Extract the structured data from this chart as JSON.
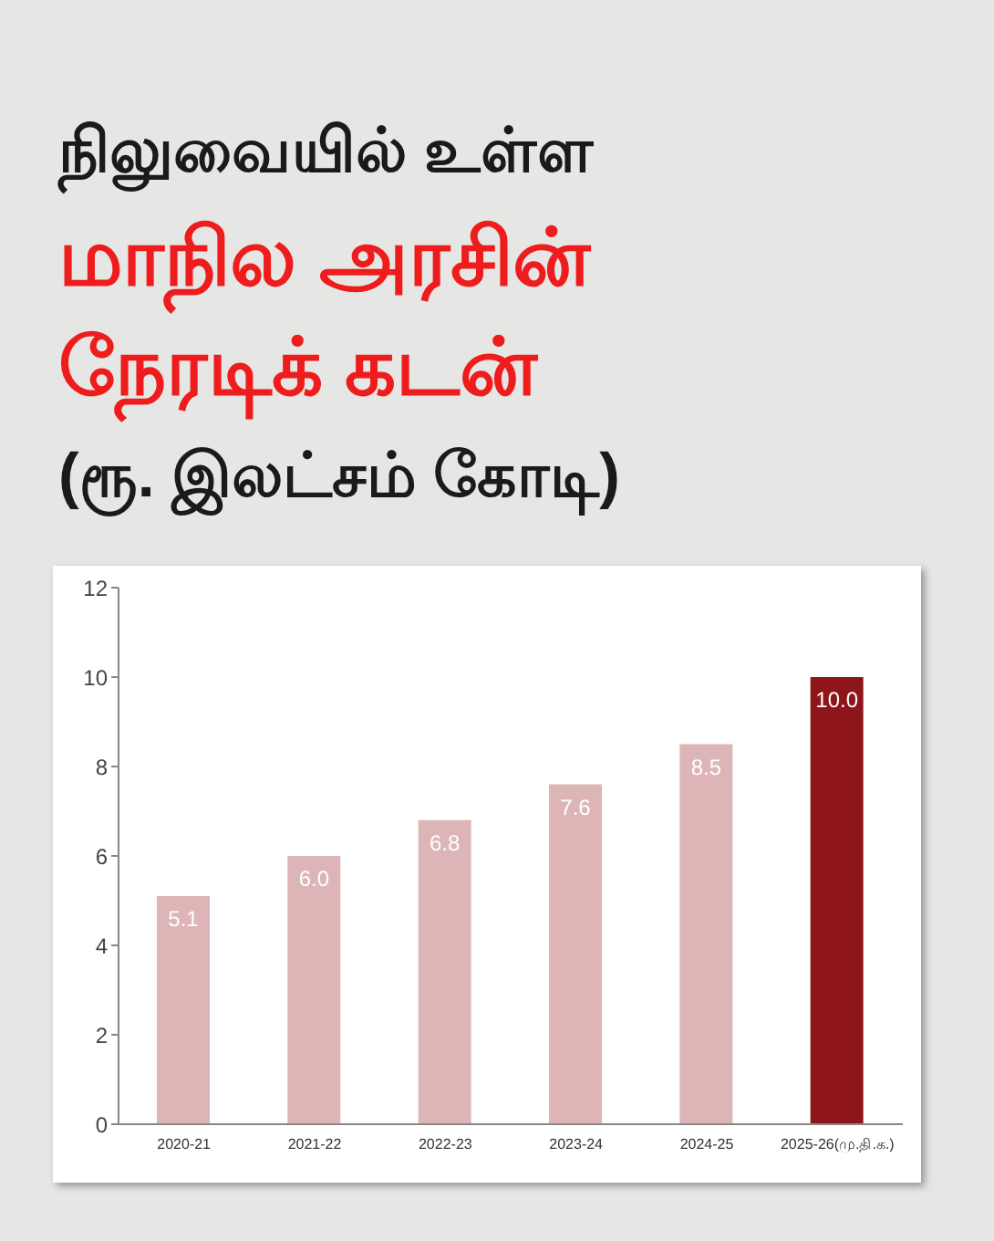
{
  "chart_data": {
    "type": "bar",
    "title": "நிலுவையில் உள்ள\nமாநில அரசின்\nநேரடிக் கடன்",
    "subtitle": "(ரூ. இலட்சம் கோடி)",
    "categories": [
      "2020-21",
      "2021-22",
      "2022-23",
      "2023-24",
      "2024-25",
      "2025-26(மு.தி.க.)"
    ],
    "values": [
      5.1,
      6.0,
      6.8,
      7.6,
      8.5,
      10.0
    ],
    "colors": [
      "#ddb5b6",
      "#ddb5b6",
      "#ddb5b6",
      "#ddb5b6",
      "#ddb5b6",
      "#8e161b"
    ],
    "value_labels": [
      "5.1",
      "6.0",
      "6.8",
      "7.6",
      "8.5",
      "10.0"
    ],
    "ylim": [
      0,
      12
    ],
    "yticks": [
      0,
      2,
      4,
      6,
      8,
      10,
      12
    ],
    "grid": false
  }
}
